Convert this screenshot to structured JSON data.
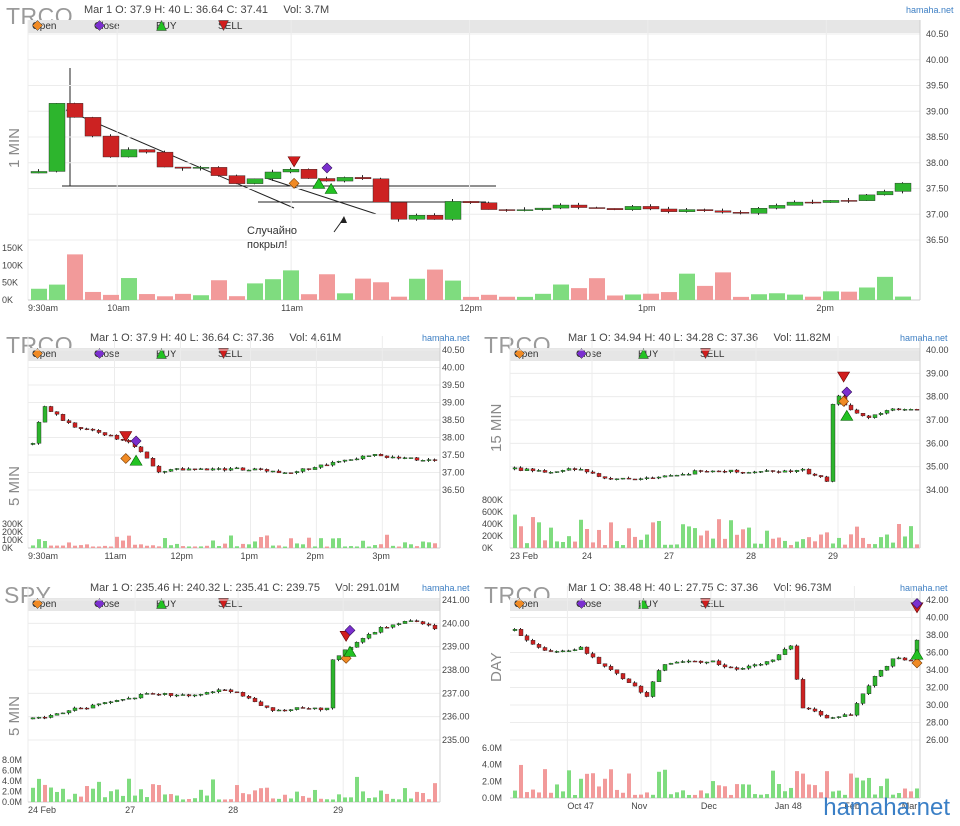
{
  "watermark": "hamaha.net",
  "legend": {
    "open": "Open",
    "close": "Close",
    "buy": "BUY",
    "sell": "SELL"
  },
  "annotation": "Случайно\nпокрыл!",
  "colors": {
    "up": "#2db52d",
    "down": "#cc2222",
    "vol_up": "#7fdc7f",
    "vol_down": "#f29a9a",
    "open_marker": "#f08a24",
    "close_marker": "#7b2fcf",
    "buy_marker": "#22c222",
    "sell_marker": "#d11d1d",
    "site": "#3d7fc4"
  },
  "panels": [
    {
      "symbol": "TRCO",
      "timeframe": "1 MIN",
      "site": "hamaha.net",
      "info": "Mar 1 O: 37.9 H: 40 L: 36.64 C: 37.41     Vol: 3.7M"
    },
    {
      "symbol": "TRCO",
      "timeframe": "5 MIN",
      "site": "hamaha.net",
      "info": "Mar 1 O: 37.9 H: 40 L: 36.64 C: 37.36     Vol: 4.61M"
    },
    {
      "symbol": "TRCO",
      "timeframe": "15 MIN",
      "site": "hamaha.net",
      "info": "Mar 1 O: 34.94 H: 40 L: 34.28 C: 37.36     Vol: 11.82M"
    },
    {
      "symbol": "SPY",
      "timeframe": "5 MIN",
      "site": "hamaha.net",
      "info": "Mar 1 O: 235.46 H: 240.32 L: 235.41 C: 239.75     Vol: 291.01M"
    },
    {
      "symbol": "TRCO",
      "timeframe": "DAY",
      "site": "hamaha.net",
      "info": "Mar 1 O: 38.48 H: 40 L: 27.75 C: 37.36     Vol: 96.73M"
    }
  ],
  "chart_data": [
    {
      "type": "candlestick",
      "title": "TRCO 1 MIN",
      "ylim": [
        36.5,
        40.5
      ],
      "yticks": [
        "40.50",
        "40.00",
        "39.50",
        "39.00",
        "38.50",
        "38.00",
        "37.50",
        "37.00",
        "36.50"
      ],
      "xticks": [
        "9:30am",
        "10am",
        "11am",
        "12pm",
        "1pm",
        "2pm"
      ],
      "vol_ticks": [
        "150K",
        "100K",
        "50K",
        "0K"
      ],
      "path": [
        [
          0,
          37.8
        ],
        [
          3,
          39.2
        ],
        [
          10,
          38.8
        ],
        [
          18,
          38.1
        ],
        [
          24,
          38.4
        ],
        [
          30,
          37.9
        ],
        [
          40,
          37.9
        ],
        [
          48,
          37.6
        ],
        [
          54,
          37.7
        ],
        [
          60,
          37.9
        ],
        [
          66,
          37.7
        ],
        [
          72,
          37.6
        ],
        [
          78,
          37.8
        ],
        [
          82,
          37.4
        ],
        [
          86,
          36.8
        ],
        [
          90,
          37.0
        ],
        [
          96,
          36.9
        ],
        [
          100,
          37.3
        ],
        [
          110,
          37.1
        ],
        [
          130,
          37.15
        ],
        [
          150,
          37.1
        ],
        [
          170,
          37.0
        ],
        [
          182,
          37.2
        ],
        [
          200,
          37.3
        ],
        [
          210,
          37.6
        ]
      ],
      "markers": [
        {
          "t": "sell",
          "x": 62,
          "y": 38.0
        },
        {
          "t": "close",
          "x": 70,
          "y": 37.9
        },
        {
          "t": "open",
          "x": 62,
          "y": 37.6
        },
        {
          "t": "buy",
          "x": 68,
          "y": 37.6
        },
        {
          "t": "buy",
          "x": 71,
          "y": 37.5
        }
      ]
    },
    {
      "type": "candlestick",
      "title": "TRCO 5 MIN",
      "ylim": [
        36.5,
        40.5
      ],
      "yticks": [
        "40.50",
        "40.00",
        "39.50",
        "39.00",
        "38.50",
        "38.00",
        "37.50",
        "37.00",
        "36.50"
      ],
      "xticks": [
        "9:30am",
        "11am",
        "12pm",
        "1pm",
        "2pm",
        "3pm"
      ],
      "vol_ticks": [
        "300K",
        "200K",
        "100K",
        "0K"
      ],
      "path": [
        [
          0,
          37.8
        ],
        [
          2,
          38.9
        ],
        [
          8,
          38.3
        ],
        [
          14,
          38.1
        ],
        [
          18,
          37.9
        ],
        [
          21,
          37.6
        ],
        [
          24,
          37.0
        ],
        [
          28,
          37.1
        ],
        [
          40,
          37.1
        ],
        [
          50,
          37.0
        ],
        [
          56,
          37.2
        ],
        [
          62,
          37.4
        ],
        [
          66,
          37.5
        ],
        [
          72,
          37.4
        ],
        [
          78,
          37.35
        ]
      ],
      "markers": [
        {
          "t": "sell",
          "x": 18,
          "y": 38.0
        },
        {
          "t": "close",
          "x": 20,
          "y": 37.9
        },
        {
          "t": "open",
          "x": 18,
          "y": 37.4
        },
        {
          "t": "buy",
          "x": 20,
          "y": 37.35
        }
      ]
    },
    {
      "type": "candlestick",
      "title": "TRCO 15 MIN",
      "ylim": [
        34.0,
        40.0
      ],
      "yticks": [
        "40.00",
        "39.00",
        "38.00",
        "37.00",
        "36.00",
        "35.00",
        "34.00"
      ],
      "xticks": [
        "23 Feb",
        "24",
        "27",
        "28",
        "29"
      ],
      "vol_ticks": [
        "800K",
        "600K",
        "400K",
        "200K",
        "0K"
      ],
      "path": [
        [
          0,
          34.9
        ],
        [
          10,
          34.8
        ],
        [
          20,
          34.9
        ],
        [
          28,
          34.5
        ],
        [
          40,
          34.5
        ],
        [
          52,
          34.6
        ],
        [
          58,
          34.85
        ],
        [
          70,
          34.8
        ],
        [
          80,
          34.8
        ],
        [
          90,
          34.85
        ],
        [
          98,
          34.4
        ],
        [
          100,
          38.3
        ],
        [
          104,
          37.5
        ],
        [
          110,
          37.1
        ],
        [
          120,
          37.5
        ],
        [
          126,
          37.4
        ]
      ],
      "markers": [
        {
          "t": "sell",
          "x": 103,
          "y": 38.8
        },
        {
          "t": "close",
          "x": 104,
          "y": 38.2
        },
        {
          "t": "open",
          "x": 103,
          "y": 37.8
        },
        {
          "t": "buy",
          "x": 104,
          "y": 37.2
        }
      ]
    },
    {
      "type": "candlestick",
      "title": "SPY 5 MIN",
      "ylim": [
        235.0,
        241.0
      ],
      "yticks": [
        "241.00",
        "240.00",
        "239.00",
        "238.00",
        "237.00",
        "236.00",
        "235.00"
      ],
      "xticks": [
        "24 Feb",
        "27",
        "28",
        "29"
      ],
      "vol_ticks": [
        "8.0M",
        "6.0M",
        "4.0M",
        "2.0M",
        "0.0M"
      ],
      "path": [
        [
          0,
          235.9
        ],
        [
          10,
          236.3
        ],
        [
          20,
          236.6
        ],
        [
          30,
          237.0
        ],
        [
          40,
          236.9
        ],
        [
          50,
          237.2
        ],
        [
          56,
          236.8
        ],
        [
          62,
          236.2
        ],
        [
          70,
          236.4
        ],
        [
          76,
          236.3
        ],
        [
          77,
          238.4
        ],
        [
          82,
          239.0
        ],
        [
          90,
          239.8
        ],
        [
          98,
          240.1
        ],
        [
          104,
          239.8
        ]
      ],
      "markers": [
        {
          "t": "sell",
          "x": 81,
          "y": 239.4
        },
        {
          "t": "close",
          "x": 82,
          "y": 239.7
        },
        {
          "t": "open",
          "x": 81,
          "y": 238.5
        },
        {
          "t": "buy",
          "x": 82,
          "y": 238.8
        }
      ]
    },
    {
      "type": "candlestick",
      "title": "TRCO DAY",
      "ylim": [
        26.0,
        42.0
      ],
      "yticks": [
        "42.00",
        "40.00",
        "38.00",
        "36.00",
        "34.00",
        "32.00",
        "30.00",
        "28.00",
        "26.00"
      ],
      "xticks": [
        "Oct 47",
        "Nov",
        "Dec",
        "Jan 48",
        "Feb",
        "Mar"
      ],
      "vol_ticks": [
        "6.0M",
        "4.0M",
        "2.0M",
        "0.0M"
      ],
      "path": [
        [
          0,
          38.5
        ],
        [
          5,
          37.0
        ],
        [
          10,
          36.0
        ],
        [
          18,
          36.5
        ],
        [
          24,
          34.5
        ],
        [
          32,
          32.5
        ],
        [
          36,
          31.0
        ],
        [
          40,
          34.5
        ],
        [
          46,
          35.0
        ],
        [
          54,
          35.0
        ],
        [
          60,
          34.0
        ],
        [
          70,
          35.0
        ],
        [
          76,
          37.0
        ],
        [
          78,
          29.8
        ],
        [
          86,
          28.5
        ],
        [
          92,
          29.0
        ],
        [
          98,
          33.0
        ],
        [
          104,
          35.5
        ],
        [
          108,
          34.8
        ],
        [
          110,
          37.4
        ]
      ],
      "markers": [
        {
          "t": "sell",
          "x": 110,
          "y": 41.0
        },
        {
          "t": "close",
          "x": 110,
          "y": 41.6
        },
        {
          "t": "open",
          "x": 110,
          "y": 34.8
        },
        {
          "t": "buy",
          "x": 110,
          "y": 35.8
        }
      ]
    }
  ]
}
